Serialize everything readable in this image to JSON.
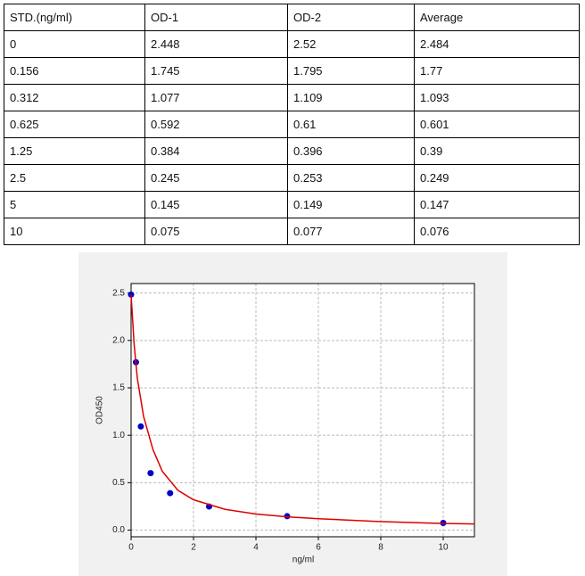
{
  "table": {
    "header": [
      "STD.(ng/ml)",
      "OD-1",
      "OD-2",
      "Average"
    ],
    "rows": [
      [
        "0",
        "2.448",
        "2.52",
        "2.484"
      ],
      [
        "0.156",
        "1.745",
        "1.795",
        "1.77"
      ],
      [
        "0.312",
        "1.077",
        "1.109",
        "1.093"
      ],
      [
        "0.625",
        "0.592",
        "0.61",
        "0.601"
      ],
      [
        "1.25",
        "0.384",
        "0.396",
        "0.39"
      ],
      [
        "2.5",
        "0.245",
        "0.253",
        "0.249"
      ],
      [
        "5",
        "0.145",
        "0.149",
        "0.147"
      ],
      [
        "10",
        "0.075",
        "0.077",
        "0.076"
      ]
    ]
  },
  "chart_data": {
    "type": "scatter",
    "x_label": "ng/ml",
    "y_label": "OD450",
    "series": [
      {
        "color": "#0000cc",
        "x": [
          0,
          0.156,
          0.312,
          0.625,
          1.25,
          2.5,
          5,
          10
        ],
        "values": [
          2.484,
          1.77,
          1.093,
          0.601,
          0.39,
          0.249,
          0.147,
          0.076
        ]
      },
      {
        "type": "line",
        "color": "#dd0000",
        "x": [
          0,
          0.1,
          0.2,
          0.4,
          0.7,
          1,
          1.5,
          2,
          3,
          4,
          5,
          6,
          8,
          10,
          11
        ],
        "values": [
          2.48,
          1.95,
          1.6,
          1.2,
          0.85,
          0.62,
          0.42,
          0.32,
          0.22,
          0.17,
          0.14,
          0.12,
          0.09,
          0.07,
          0.065
        ]
      }
    ],
    "xlim": [
      0,
      11
    ],
    "ylim": [
      -0.07,
      2.6
    ],
    "xticks": [
      0,
      2,
      4,
      6,
      8,
      10
    ],
    "yticks": [
      {
        "value": 0,
        "label": "0.0"
      },
      {
        "value": 0.5,
        "label": "0.5"
      },
      {
        "value": 1,
        "label": "1.0"
      },
      {
        "value": 1.5,
        "label": "1.5"
      },
      {
        "value": 2,
        "label": "2.0"
      },
      {
        "value": 2.5,
        "label": "2.5"
      }
    ],
    "grid": true
  }
}
